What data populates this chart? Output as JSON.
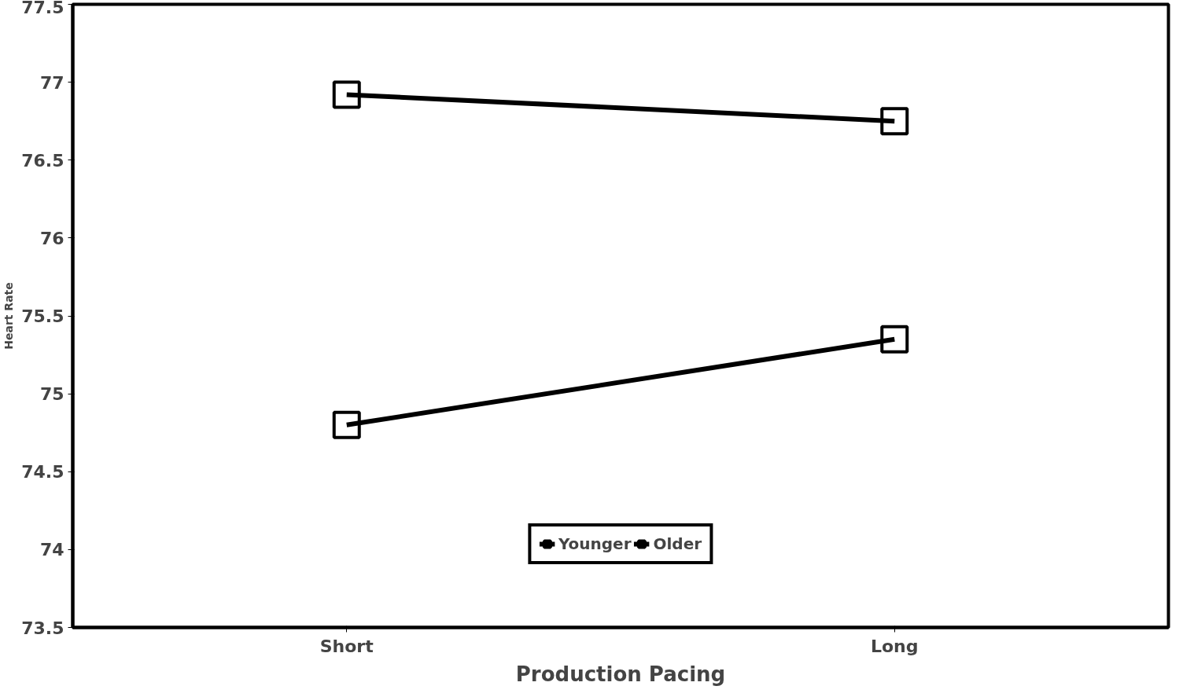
{
  "chart_data": {
    "type": "line",
    "xlabel": "Production Pacing",
    "ylabel": "Heart Rate",
    "categories": [
      "Short",
      "Long"
    ],
    "series": [
      {
        "name": "Younger",
        "color": "#000000",
        "values": [
          74.8,
          75.35
        ]
      },
      {
        "name": "Older",
        "color": "#000000",
        "values": [
          76.92,
          76.75
        ]
      }
    ],
    "ylim": [
      73.5,
      77.5
    ],
    "yticks": [
      73.5,
      74,
      74.5,
      75,
      75.5,
      76,
      76.5,
      77,
      77.5
    ],
    "grid": false,
    "legend": "bottom",
    "marker": "square"
  }
}
